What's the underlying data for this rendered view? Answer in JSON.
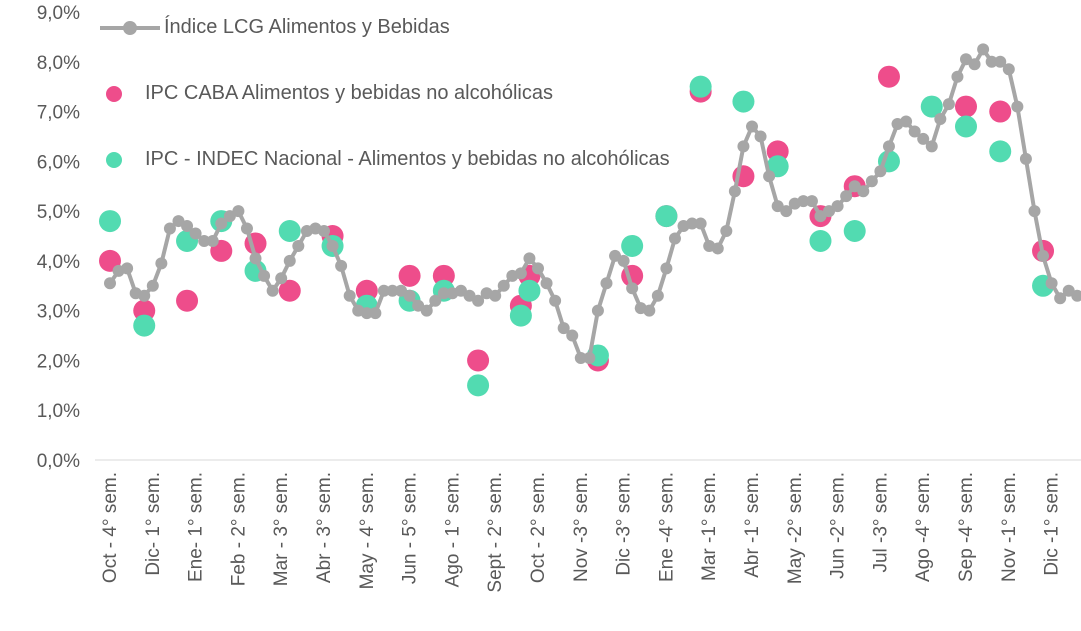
{
  "chart_data": {
    "type": "line",
    "categories": [
      "Oct - 4° sem.",
      null,
      null,
      null,
      null,
      "Dic- 1° sem.",
      null,
      null,
      null,
      null,
      "Ene- 1° sem.",
      null,
      null,
      null,
      null,
      "Feb - 2° sem.",
      null,
      null,
      null,
      null,
      "Mar - 3° sem.",
      null,
      null,
      null,
      null,
      "Abr - 3° sem.",
      null,
      null,
      null,
      null,
      "May - 4° sem.",
      null,
      null,
      null,
      null,
      "Jun - 5° sem.",
      null,
      null,
      null,
      null,
      "Ago - 1° sem.",
      null,
      null,
      null,
      null,
      "Sept - 2° sem.",
      null,
      null,
      null,
      null,
      "Oct - 2° sem.",
      null,
      null,
      null,
      null,
      "Nov -3° sem.",
      null,
      null,
      null,
      null,
      "Dic -3° sem.",
      null,
      null,
      null,
      null,
      "Ene -4° sem.",
      null,
      null,
      null,
      null,
      "Mar -1° sem.",
      null,
      null,
      null,
      null,
      "Abr -1° sem.",
      null,
      null,
      null,
      null,
      "May -2° sem.",
      null,
      null,
      null,
      null,
      "Jun -2° sem.",
      null,
      null,
      null,
      null,
      "Jul -3° sem.",
      null,
      null,
      null,
      null,
      "Ago -4° sem.",
      null,
      null,
      null,
      null,
      "Sep -4° sem.",
      null,
      null,
      null,
      null,
      "Nov -1° sem.",
      null,
      null,
      null,
      null,
      "Dic -1° sem.",
      null,
      null,
      null
    ],
    "series": [
      {
        "name": "Índice LCG Alimentos y Bebidas",
        "type": "line",
        "color": "#a6a6a6",
        "values": [
          3.55,
          3.8,
          3.85,
          3.35,
          3.3,
          3.5,
          3.95,
          4.65,
          4.8,
          4.7,
          4.55,
          4.4,
          4.4,
          4.75,
          4.9,
          5.0,
          4.65,
          4.05,
          3.7,
          3.4,
          3.65,
          4.0,
          4.3,
          4.6,
          4.65,
          4.6,
          4.3,
          3.9,
          3.3,
          3.0,
          2.95,
          2.95,
          3.4,
          3.4,
          3.4,
          3.3,
          3.1,
          3.0,
          3.2,
          3.35,
          3.35,
          3.4,
          3.3,
          3.2,
          3.35,
          3.3,
          3.5,
          3.7,
          3.75,
          4.05,
          3.85,
          3.55,
          3.2,
          2.65,
          2.5,
          2.05,
          2.05,
          3.0,
          3.55,
          4.1,
          4.0,
          3.45,
          3.05,
          3.0,
          3.3,
          3.85,
          4.45,
          4.7,
          4.75,
          4.75,
          4.3,
          4.25,
          4.6,
          5.4,
          6.3,
          6.7,
          6.5,
          5.7,
          5.1,
          5.0,
          5.15,
          5.2,
          5.2,
          4.9,
          5.0,
          5.1,
          5.3,
          5.5,
          5.4,
          5.6,
          5.8,
          6.3,
          6.75,
          6.8,
          6.6,
          6.45,
          6.3,
          6.85,
          7.15,
          7.7,
          8.05,
          7.95,
          8.25,
          8.0,
          8.0,
          7.85,
          7.1,
          6.05,
          5.0,
          4.1,
          3.55,
          3.25,
          3.4,
          3.3
        ]
      },
      {
        "name": "IPC CABA Alimentos y bebidas no alcohólicas",
        "type": "scatter",
        "color": "#ee4d8b",
        "values": [
          4.0,
          null,
          null,
          null,
          3.0,
          null,
          null,
          null,
          null,
          3.2,
          null,
          null,
          null,
          4.2,
          null,
          null,
          null,
          4.35,
          null,
          null,
          null,
          3.4,
          null,
          null,
          null,
          null,
          4.5,
          null,
          null,
          null,
          3.4,
          null,
          null,
          null,
          null,
          3.7,
          null,
          null,
          null,
          3.7,
          null,
          null,
          null,
          2.0,
          null,
          null,
          null,
          null,
          3.1,
          3.7,
          null,
          null,
          null,
          null,
          null,
          null,
          null,
          2.0,
          null,
          null,
          null,
          3.7,
          null,
          null,
          null,
          4.9,
          null,
          null,
          null,
          7.4,
          null,
          null,
          null,
          null,
          5.7,
          null,
          null,
          null,
          6.2,
          null,
          null,
          null,
          null,
          4.9,
          null,
          null,
          null,
          5.5,
          null,
          null,
          null,
          7.7,
          null,
          null,
          null,
          null,
          null,
          null,
          null,
          null,
          7.1,
          null,
          null,
          null,
          7.0,
          null,
          null,
          null,
          null,
          4.2,
          null,
          null,
          null,
          null
        ]
      },
      {
        "name": "IPC - INDEC Nacional - Alimentos y bebidas no alcohólicas",
        "type": "scatter",
        "color": "#52dbb1",
        "values": [
          4.8,
          null,
          null,
          null,
          2.7,
          null,
          null,
          null,
          null,
          4.4,
          null,
          null,
          null,
          4.8,
          null,
          null,
          null,
          3.8,
          null,
          null,
          null,
          4.6,
          null,
          null,
          null,
          null,
          4.3,
          null,
          null,
          null,
          3.1,
          null,
          null,
          null,
          null,
          3.2,
          null,
          null,
          null,
          3.4,
          null,
          null,
          null,
          1.5,
          null,
          null,
          null,
          null,
          2.9,
          3.4,
          null,
          null,
          null,
          null,
          null,
          null,
          null,
          2.1,
          null,
          null,
          null,
          4.3,
          null,
          null,
          null,
          4.9,
          null,
          null,
          null,
          7.5,
          null,
          null,
          null,
          null,
          7.2,
          null,
          null,
          null,
          5.9,
          null,
          null,
          null,
          null,
          4.4,
          null,
          null,
          null,
          4.6,
          null,
          null,
          null,
          6.0,
          null,
          null,
          null,
          null,
          7.1,
          null,
          null,
          null,
          6.7,
          null,
          null,
          null,
          6.2,
          null,
          null,
          null,
          null,
          3.5,
          null,
          null,
          null,
          null
        ]
      }
    ],
    "ylim": [
      0,
      9
    ],
    "yticks": [
      {
        "value": 0,
        "label": "0,0%"
      },
      {
        "value": 1,
        "label": "1,0%"
      },
      {
        "value": 2,
        "label": "2,0%"
      },
      {
        "value": 3,
        "label": "3,0%"
      },
      {
        "value": 4,
        "label": "4,0%"
      },
      {
        "value": 5,
        "label": "5,0%"
      },
      {
        "value": 6,
        "label": "6,0%"
      },
      {
        "value": 7,
        "label": "7,0%"
      },
      {
        "value": 8,
        "label": "8,0%"
      },
      {
        "value": 9,
        "label": "9,0%"
      }
    ],
    "grid": false,
    "legend": "top-left"
  }
}
